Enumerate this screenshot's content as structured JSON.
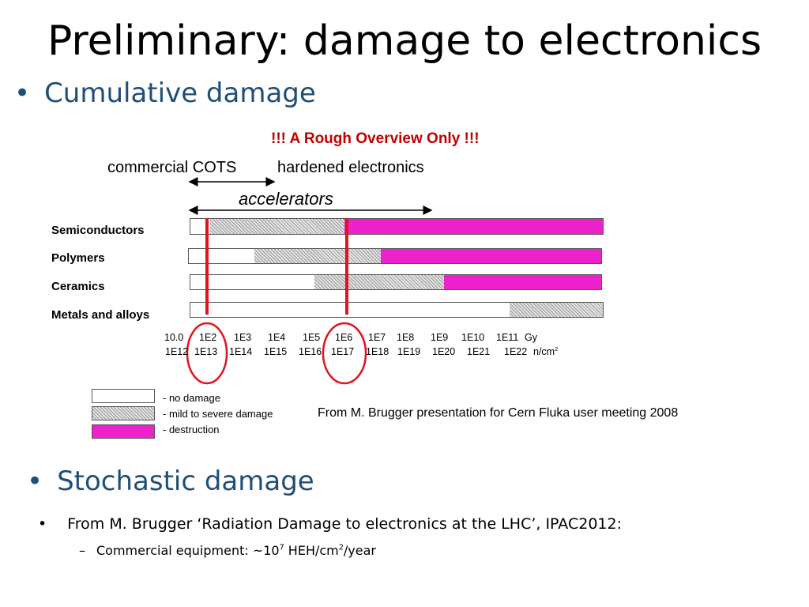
{
  "slide": {
    "title": "Preliminary: damage to electronics",
    "bullet1": "Cumulative damage",
    "bullet2": "Stochastic damage"
  },
  "diagram": {
    "warning": "!!! A Rough Overview Only !!!",
    "ranges": {
      "cots": "commercial COTS",
      "hardened": "hardened electronics",
      "accelerators": "accelerators"
    },
    "rows": [
      {
        "label": "Semiconductors",
        "segments": [
          "no damage",
          "mild to severe damage",
          "destruction"
        ]
      },
      {
        "label": "Polymers",
        "segments": [
          "no damage",
          "mild to severe damage",
          "destruction"
        ]
      },
      {
        "label": "Ceramics",
        "segments": [
          "no damage",
          "mild to severe damage",
          "destruction"
        ]
      },
      {
        "label": "Metals and alloys",
        "segments": [
          "no damage",
          "mild to severe damage"
        ]
      }
    ],
    "dose_ticks": [
      "10.0",
      "1E2",
      "1E3",
      "1E4",
      "1E5",
      "1E6",
      "1E7",
      "1E8",
      "1E9",
      "1E10",
      "1E11"
    ],
    "dose_unit": "Gy",
    "fluence_ticks": [
      "1E12",
      "1E13",
      "1E14",
      "1E15",
      "1E16",
      "1E17",
      "1E18",
      "1E19",
      "1E20",
      "1E21",
      "1E22"
    ],
    "fluence_unit": "n/cm",
    "fluence_unit_sup": "2",
    "highlighted": [
      "1E2 / 1E13",
      "1E6 / 1E17"
    ],
    "legend": [
      {
        "label": "- no damage",
        "color": "#ffffff"
      },
      {
        "label": "- mild to severe damage",
        "color": "#bbbbbb"
      },
      {
        "label": "- destruction",
        "color": "#ee22cc"
      }
    ],
    "source": "From M. Brugger presentation for Cern Fluka user meeting 2008"
  },
  "stochastic": {
    "item1": "From M. Brugger ‘Radiation Damage to electronics at the LHC’, IPAC2012:",
    "item2_prefix": "Commercial equipment: ~10",
    "item2_exp": "7",
    "item2_mid": " HEH/cm",
    "item2_exp2": "2",
    "item2_suffix": "/year"
  },
  "colors": {
    "accent_blue": "#1f4e79",
    "warning_red": "#c00000",
    "destruction_pink": "#ee22cc",
    "marker_red": "#e0141e"
  }
}
